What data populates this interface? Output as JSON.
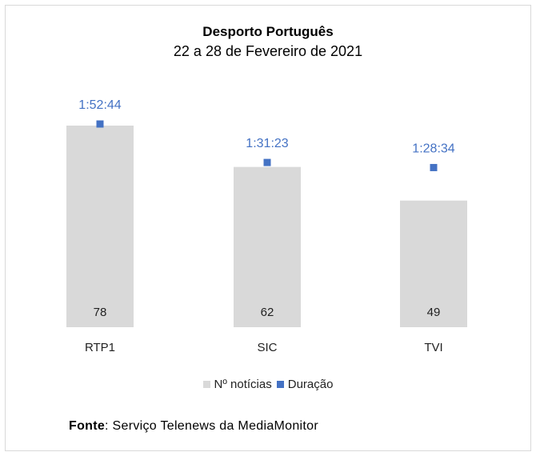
{
  "chart_data": {
    "type": "bar",
    "title": "Desporto Português",
    "subtitle": "22 a 28 de Fevereiro de 2021",
    "categories": [
      "RTP1",
      "SIC",
      "TVI"
    ],
    "series": [
      {
        "name": "Nº notícias",
        "kind": "bar",
        "color": "#d9d9d9",
        "values": [
          78,
          62,
          49
        ],
        "labels": [
          "78",
          "62",
          "49"
        ]
      },
      {
        "name": "Duração",
        "kind": "marker",
        "color": "#4472c4",
        "values_seconds": [
          6764,
          5483,
          5314
        ],
        "labels": [
          "1:52:44",
          "1:31:23",
          "1:28:34"
        ]
      }
    ],
    "ylim_bars": [
      0,
      78
    ],
    "ylim_duration_seconds": [
      0,
      6764
    ],
    "legend": "bottom"
  },
  "source": {
    "label": "Fonte",
    "text": ": Serviço Telenews da MediaMonitor"
  },
  "colors": {
    "bar": "#d9d9d9",
    "marker": "#4472c4",
    "marker_label": "#4472c4"
  }
}
